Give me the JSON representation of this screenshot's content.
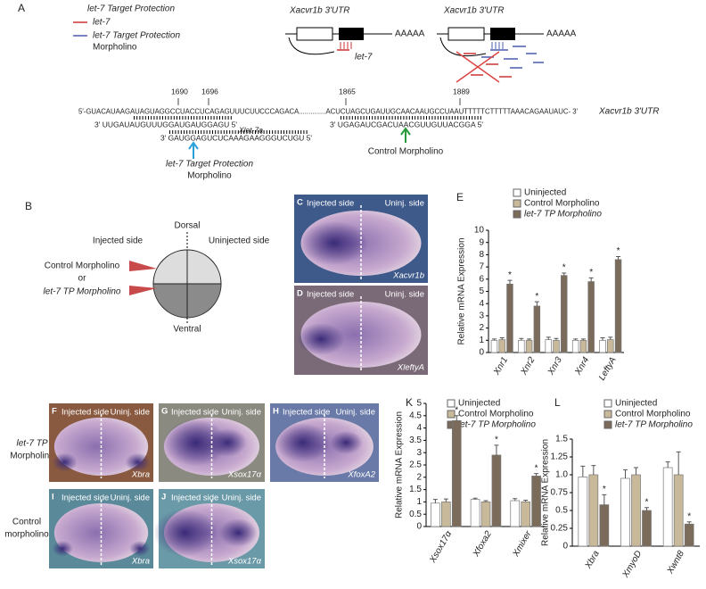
{
  "panel_a": {
    "letter": "A",
    "legend": [
      "let-7 Target Protection",
      "let-7",
      "let-7 Target Protection",
      "Morpholino"
    ],
    "diagrams": [
      {
        "label": "Xacvr1b 3'UTR",
        "polya": "AAAAA",
        "mirna": "let-7"
      },
      {
        "label": "Xacvr1b 3'UTR",
        "polya": "AAAAA"
      }
    ],
    "positions": [
      1690,
      1696,
      1865,
      1889
    ],
    "mrna": "5'-GUACAUAAGAUAGUAGGCCUACCUCAGAGUUUCUUCCCAGACA..............ACUCUAGCUGAUUGCAACAAUGCCUAAUTTTTTCTTTTTAAACAGAAUAUC- 3'",
    "mrna_label": "Xacvr1b 3'UTR",
    "let7": "3' UUGAUAUGUUUGGAUGAUGGAGU 5'",
    "let7_label": "Xlet-7a",
    "tp_mo": "3' GAUGGAGUCUCAAAGAAGGGUCUGU 5'",
    "control_mo": "3' UGAGAUCGACUAACGUUGUUACGGA 5'",
    "tp_mo_label": [
      "let-7 Target Protection",
      "Morpholino"
    ],
    "control_mo_label": "Control Morpholino"
  },
  "panel_b": {
    "letter": "B",
    "dorsal": "Dorsal",
    "ventral": "Ventral",
    "injected": "Injected side",
    "uninjected": "Uninjected side",
    "mo1": "Control Morpholino",
    "or": "or",
    "mo2": "let-7 TP Morpholino"
  },
  "photos": [
    {
      "letter": "C",
      "left": "Injected side",
      "right": "Uninj. side",
      "gene": "Xacvr1b"
    },
    {
      "letter": "D",
      "left": "Injected side",
      "right": "Uninj. side",
      "gene": "XleftyA"
    },
    {
      "letter": "F",
      "left": "Injected side",
      "right": "Uninj. side",
      "gene": "Xbra"
    },
    {
      "letter": "G",
      "left": "Injected side",
      "right": "Uninj. side",
      "gene": "Xsox17α"
    },
    {
      "letter": "H",
      "left": "Injected side",
      "right": "Uninj. side",
      "gene": "XfoxA2"
    },
    {
      "letter": "I",
      "left": "Injected side",
      "right": "Uninj. side",
      "gene": "Xbra"
    },
    {
      "letter": "J",
      "left": "Injected side",
      "right": "Uninj. side",
      "gene": "Xsox17α"
    }
  ],
  "row_labels": [
    [
      "let-7 TP",
      "Morpholino"
    ],
    [
      "Control",
      "morpholino"
    ]
  ],
  "chart_data": [
    {
      "type": "bar",
      "panel": "E",
      "ylabel": "Relative mRNA Expression",
      "categories": [
        "Xnr1",
        "Xnr2",
        "Xnr3",
        "Xnr4",
        "LeftyA"
      ],
      "series": [
        {
          "name": "Uninjected",
          "color": "#ffffff",
          "values": [
            1.0,
            1.0,
            1.05,
            1.0,
            1.0
          ],
          "errors": [
            0.1,
            0.15,
            0.2,
            0.1,
            0.2
          ]
        },
        {
          "name": "Control Morpholino",
          "color": "#c9b99b",
          "values": [
            1.05,
            1.0,
            1.0,
            1.0,
            1.05
          ],
          "errors": [
            0.15,
            0.1,
            0.15,
            0.1,
            0.2
          ]
        },
        {
          "name": "let-7 TP Morpholino",
          "color": "#7b6b5b",
          "values": [
            5.6,
            3.8,
            6.3,
            5.8,
            7.6
          ],
          "errors": [
            0.3,
            0.35,
            0.2,
            0.3,
            0.25
          ]
        }
      ],
      "annotations": [
        "*",
        "*",
        "*",
        "*",
        "*"
      ],
      "ylim": [
        0,
        10
      ],
      "yticks": [
        0,
        1,
        2,
        3,
        4,
        5,
        6,
        7,
        8,
        9,
        10
      ]
    },
    {
      "type": "bar",
      "panel": "K",
      "ylabel": "Relative mRNA Expression",
      "categories": [
        "Xsox17α",
        "Xfoxa2",
        "Xmixer"
      ],
      "series": [
        {
          "name": "Uninjected",
          "color": "#ffffff",
          "values": [
            0.95,
            1.1,
            1.05
          ],
          "errors": [
            0.15,
            0.05,
            0.08
          ]
        },
        {
          "name": "Control Morpholino",
          "color": "#c9b99b",
          "values": [
            1.0,
            1.0,
            1.0
          ],
          "errors": [
            0.12,
            0.05,
            0.07
          ]
        },
        {
          "name": "let-7 TP Morpholino",
          "color": "#7b6b5b",
          "values": [
            4.3,
            2.9,
            2.05
          ],
          "errors": [
            0.2,
            0.4,
            0.1
          ]
        }
      ],
      "annotations": [
        "*",
        "*",
        "*"
      ],
      "ylim": [
        0,
        5
      ],
      "yticks": [
        0,
        0.5,
        1,
        1.5,
        2,
        2.5,
        3,
        3.5,
        4,
        4.5,
        5
      ]
    },
    {
      "type": "bar",
      "panel": "L",
      "ylabel": "Relative mRNA Expression",
      "categories": [
        "Xbra",
        "XmyoD",
        "Xwnt8"
      ],
      "series": [
        {
          "name": "Uninjected",
          "color": "#ffffff",
          "values": [
            0.97,
            0.95,
            1.1
          ],
          "errors": [
            0.15,
            0.12,
            0.08
          ]
        },
        {
          "name": "Control Morpholino",
          "color": "#c9b99b",
          "values": [
            1.0,
            1.0,
            1.0
          ],
          "errors": [
            0.13,
            0.1,
            0.32
          ]
        },
        {
          "name": "let-7 TP Morpholino",
          "color": "#7b6b5b",
          "values": [
            0.58,
            0.5,
            0.31
          ],
          "errors": [
            0.14,
            0.04,
            0.03
          ]
        }
      ],
      "annotations": [
        "*",
        "*",
        "*"
      ],
      "ylim": [
        0,
        1.5
      ],
      "yticks": [
        0,
        0.25,
        0.5,
        0.75,
        {
          "value": 1,
          "label": "1.0"
        },
        1.25,
        1.5
      ]
    }
  ]
}
